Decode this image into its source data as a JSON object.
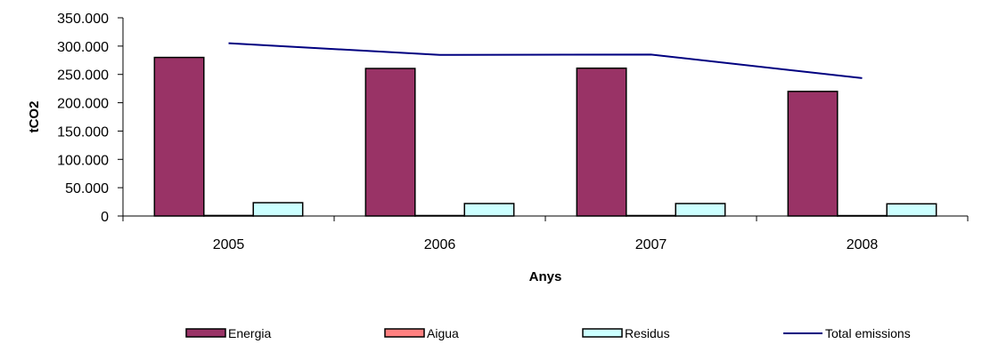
{
  "chart_data": {
    "type": "bar",
    "categories": [
      "2005",
      "2006",
      "2007",
      "2008"
    ],
    "series": [
      {
        "name": "Energia",
        "kind": "bar",
        "color": "#993366",
        "values": [
          280000,
          260500,
          261000,
          220000
        ]
      },
      {
        "name": "Aigua",
        "kind": "bar",
        "color": "#ff8080",
        "values": [
          900,
          800,
          800,
          700
        ]
      },
      {
        "name": "Residus",
        "kind": "bar",
        "color": "#ccffff",
        "values": [
          23500,
          22000,
          22000,
          21500
        ]
      },
      {
        "name": "Total emissions",
        "kind": "line",
        "color": "#000080",
        "values": [
          305000,
          284500,
          285000,
          243500
        ]
      }
    ],
    "xlabel": "Anys",
    "ylabel": "tCO2",
    "ylim": [
      0,
      350000
    ],
    "yticks": [
      "0",
      "50.000",
      "100.000",
      "150.000",
      "200.000",
      "250.000",
      "300.000",
      "350.000"
    ],
    "grid": false,
    "legend_position": "bottom"
  }
}
